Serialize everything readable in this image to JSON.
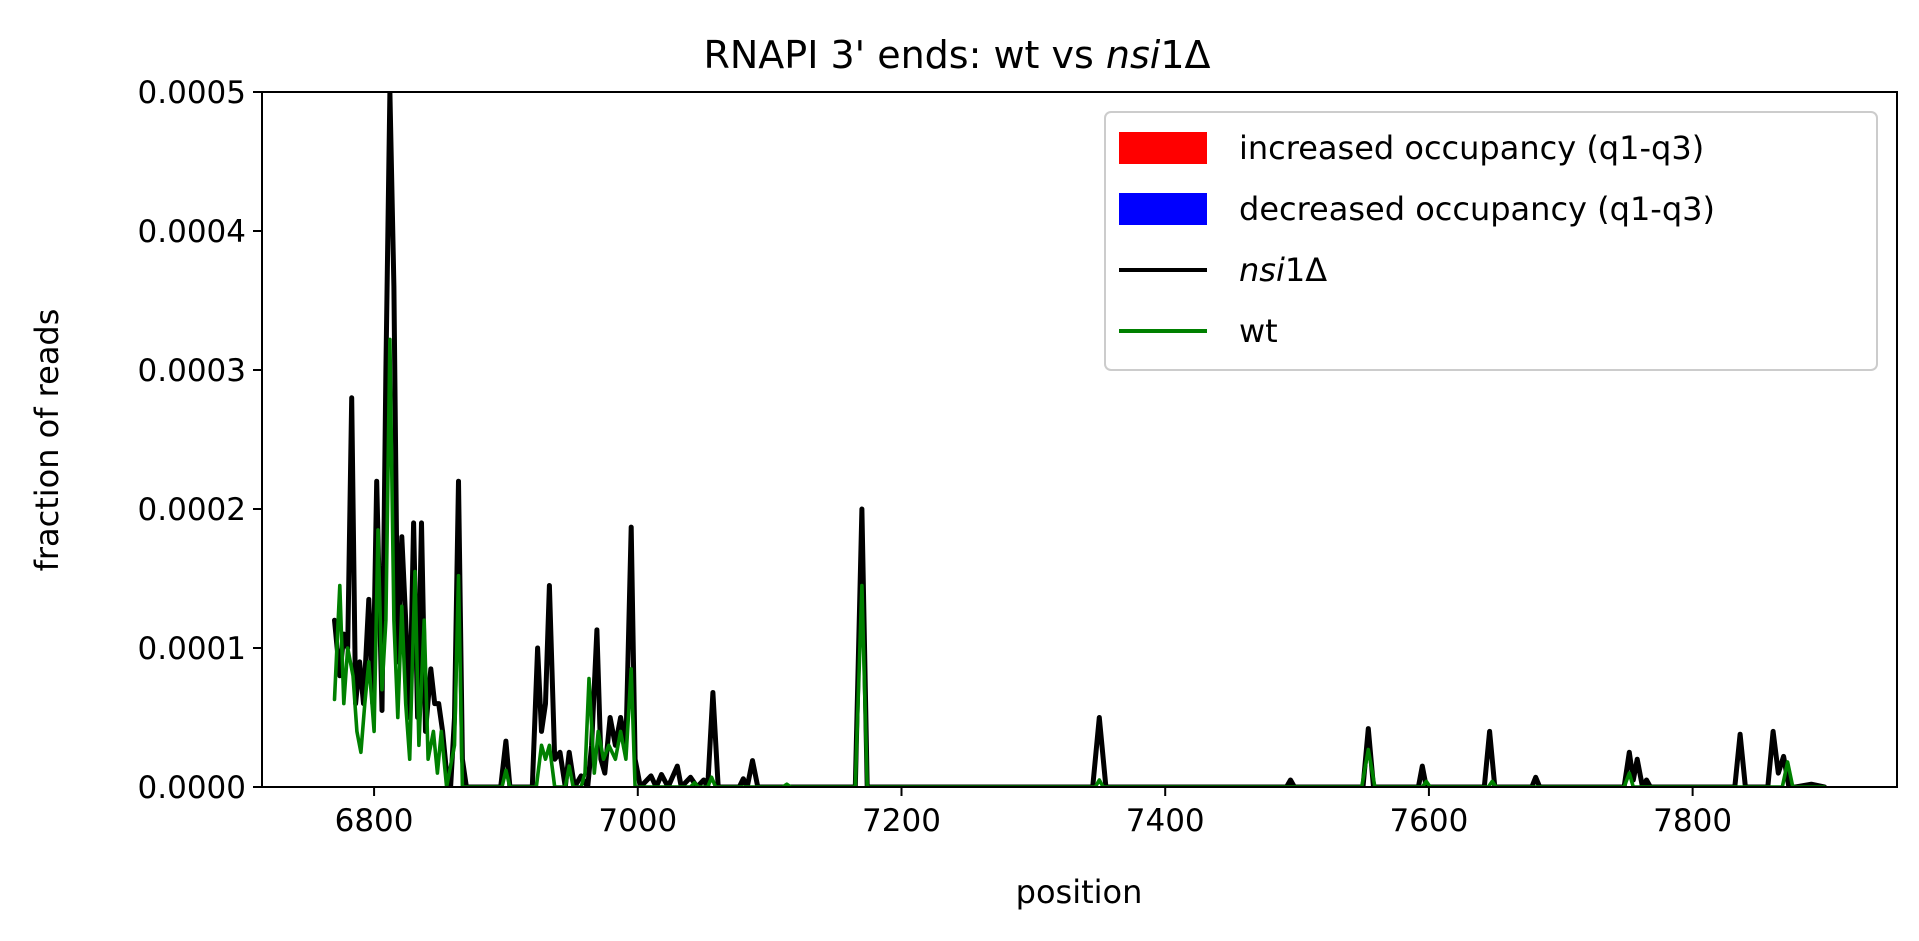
{
  "chart_data": {
    "type": "line",
    "title": {
      "prefix": "RNAPI 3' ends: wt vs ",
      "italic": "nsi",
      "suffix": "1Δ"
    },
    "xlabel": "position",
    "ylabel": "fraction of reads",
    "xlim": [
      6715,
      7955
    ],
    "ylim": [
      0,
      0.0005
    ],
    "xticks": [
      6800,
      7000,
      7200,
      7400,
      7600,
      7800
    ],
    "xtick_labels": [
      "6800",
      "7000",
      "7200",
      "7400",
      "7600",
      "7800"
    ],
    "yticks": [
      0,
      0.0001,
      0.0002,
      0.0003,
      0.0004,
      0.0005
    ],
    "ytick_labels": [
      "0.0000",
      "0.0001",
      "0.0002",
      "0.0003",
      "0.0004",
      "0.0005"
    ],
    "grid": false,
    "legend_position": "top-right",
    "legend": [
      {
        "kind": "patch",
        "color": "#ff0000",
        "text": "increased occupancy (q1-q3)"
      },
      {
        "kind": "patch",
        "color": "#0000ff",
        "text": "decreased occupancy (q1-q3)"
      },
      {
        "kind": "line",
        "color": "#000000",
        "italic": "nsi",
        "suffix": "1Δ"
      },
      {
        "kind": "line",
        "color": "#008000",
        "text": "wt"
      }
    ],
    "series": [
      {
        "color": "#000000",
        "points": [
          [
            6770,
            0.00012
          ],
          [
            6774,
            8e-05
          ],
          [
            6777,
            0.00011
          ],
          [
            6780,
            0.0001
          ],
          [
            6783,
            0.00028
          ],
          [
            6786,
            6e-05
          ],
          [
            6789,
            9e-05
          ],
          [
            6792,
            6e-05
          ],
          [
            6796,
            0.000135
          ],
          [
            6799,
            6e-05
          ],
          [
            6802,
            0.00022
          ],
          [
            6806,
            5.5e-05
          ],
          [
            6809,
            0.0003
          ],
          [
            6812,
            0.0005
          ],
          [
            6815,
            0.00036
          ],
          [
            6818,
            9e-05
          ],
          [
            6821,
            0.00018
          ],
          [
            6824,
            0.00012
          ],
          [
            6827,
            5e-05
          ],
          [
            6830,
            0.00019
          ],
          [
            6833,
            5e-05
          ],
          [
            6836,
            0.00019
          ],
          [
            6839,
            4e-05
          ],
          [
            6843,
            8.5e-05
          ],
          [
            6846,
            6e-05
          ],
          [
            6849,
            6e-05
          ],
          [
            6852,
            4e-05
          ],
          [
            6855,
            1e-05
          ],
          [
            6858,
            0.0
          ],
          [
            6861,
            5e-05
          ],
          [
            6864,
            0.00022
          ],
          [
            6867,
            2e-05
          ],
          [
            6870,
            0.0
          ],
          [
            6896,
            0.0
          ],
          [
            6900,
            3.3e-05
          ],
          [
            6903,
            0.0
          ],
          [
            6920,
            0.0
          ],
          [
            6924,
            0.0001
          ],
          [
            6927,
            4e-05
          ],
          [
            6930,
            6e-05
          ],
          [
            6933,
            0.000145
          ],
          [
            6937,
            2e-05
          ],
          [
            6941,
            2.5e-05
          ],
          [
            6945,
            0.0
          ],
          [
            6948,
            2.5e-05
          ],
          [
            6952,
            0.0
          ],
          [
            6957,
            8e-06
          ],
          [
            6962,
            0.0
          ],
          [
            6965,
            3e-05
          ],
          [
            6969,
            0.000113
          ],
          [
            6972,
            2e-05
          ],
          [
            6975,
            1e-05
          ],
          [
            6979,
            5e-05
          ],
          [
            6983,
            3e-05
          ],
          [
            6987,
            5e-05
          ],
          [
            6991,
            3e-05
          ],
          [
            6995,
            0.000187
          ],
          [
            6998,
            2e-05
          ],
          [
            7002,
            0.0
          ],
          [
            7010,
            8e-06
          ],
          [
            7014,
            0.0
          ],
          [
            7018,
            9e-06
          ],
          [
            7023,
            0.0
          ],
          [
            7030,
            1.5e-05
          ],
          [
            7033,
            0.0
          ],
          [
            7040,
            7e-06
          ],
          [
            7045,
            0.0
          ],
          [
            7050,
            5e-06
          ],
          [
            7053,
            0.0
          ],
          [
            7057,
            6.8e-05
          ],
          [
            7061,
            0.0
          ],
          [
            7077,
            0.0
          ],
          [
            7080,
            6e-06
          ],
          [
            7083,
            0.0
          ],
          [
            7087,
            1.9e-05
          ],
          [
            7091,
            0.0
          ],
          [
            7165,
            0.0
          ],
          [
            7170,
            0.0002
          ],
          [
            7174,
            0.0
          ],
          [
            7345,
            0.0
          ],
          [
            7350,
            5e-05
          ],
          [
            7355,
            0.0
          ],
          [
            7492,
            0.0
          ],
          [
            7495,
            5e-06
          ],
          [
            7498,
            0.0
          ],
          [
            7550,
            0.0
          ],
          [
            7554,
            4.2e-05
          ],
          [
            7558,
            0.0
          ],
          [
            7592,
            0.0
          ],
          [
            7595,
            1.5e-05
          ],
          [
            7598,
            0.0
          ],
          [
            7642,
            0.0
          ],
          [
            7646,
            4e-05
          ],
          [
            7650,
            0.0
          ],
          [
            7678,
            0.0
          ],
          [
            7681,
            7e-06
          ],
          [
            7684,
            0.0
          ],
          [
            7748,
            0.0
          ],
          [
            7752,
            2.5e-05
          ],
          [
            7755,
            5e-06
          ],
          [
            7758,
            2e-05
          ],
          [
            7762,
            0.0
          ],
          [
            7765,
            5e-06
          ],
          [
            7768,
            0.0
          ],
          [
            7832,
            0.0
          ],
          [
            7836,
            3.8e-05
          ],
          [
            7840,
            0.0
          ],
          [
            7857,
            0.0
          ],
          [
            7861,
            4e-05
          ],
          [
            7865,
            1e-05
          ],
          [
            7869,
            2.2e-05
          ],
          [
            7873,
            0.0
          ],
          [
            7878,
            0.0
          ],
          [
            7890,
            2e-06
          ],
          [
            7900,
            0.0
          ]
        ]
      },
      {
        "color": "#008000",
        "points": [
          [
            6770,
            6.3e-05
          ],
          [
            6774,
            0.000145
          ],
          [
            6777,
            6e-05
          ],
          [
            6780,
            0.0001
          ],
          [
            6784,
            8e-05
          ],
          [
            6787,
            4e-05
          ],
          [
            6790,
            2.5e-05
          ],
          [
            6793,
            6e-05
          ],
          [
            6796,
            9e-05
          ],
          [
            6800,
            4e-05
          ],
          [
            6803,
            0.000185
          ],
          [
            6806,
            7e-05
          ],
          [
            6809,
            0.00012
          ],
          [
            6812,
            0.000322
          ],
          [
            6815,
            0.00012
          ],
          [
            6818,
            5e-05
          ],
          [
            6821,
            0.00013
          ],
          [
            6824,
            6e-05
          ],
          [
            6827,
            2e-05
          ],
          [
            6831,
            0.000155
          ],
          [
            6834,
            3e-05
          ],
          [
            6838,
            0.00012
          ],
          [
            6841,
            2e-05
          ],
          [
            6845,
            4e-05
          ],
          [
            6848,
            1e-05
          ],
          [
            6851,
            4e-05
          ],
          [
            6855,
            0.0
          ],
          [
            6861,
            3e-05
          ],
          [
            6864,
            0.000152
          ],
          [
            6867,
            0.0
          ],
          [
            6897,
            0.0
          ],
          [
            6900,
            1.2e-05
          ],
          [
            6903,
            0.0
          ],
          [
            6923,
            0.0
          ],
          [
            6927,
            3e-05
          ],
          [
            6930,
            2e-05
          ],
          [
            6933,
            3e-05
          ],
          [
            6937,
            0.0
          ],
          [
            6945,
            0.0
          ],
          [
            6948,
            1.5e-05
          ],
          [
            6951,
            0.0
          ],
          [
            6957,
            0.0
          ],
          [
            6960,
            1e-05
          ],
          [
            6963,
            7.8e-05
          ],
          [
            6967,
            1e-05
          ],
          [
            6970,
            4e-05
          ],
          [
            6974,
            2e-05
          ],
          [
            6978,
            3e-05
          ],
          [
            6983,
            2e-05
          ],
          [
            6987,
            4e-05
          ],
          [
            6991,
            2e-05
          ],
          [
            6995,
            8.5e-05
          ],
          [
            6998,
            0.0
          ],
          [
            7040,
            0.0
          ],
          [
            7043,
            3e-06
          ],
          [
            7046,
            0.0
          ],
          [
            7053,
            0.0
          ],
          [
            7056,
            7e-06
          ],
          [
            7059,
            0.0
          ],
          [
            7110,
            0.0
          ],
          [
            7113,
            2e-06
          ],
          [
            7116,
            0.0
          ],
          [
            7165,
            0.0
          ],
          [
            7170,
            0.000145
          ],
          [
            7174,
            0.0
          ],
          [
            7347,
            0.0
          ],
          [
            7350,
            5e-06
          ],
          [
            7353,
            0.0
          ],
          [
            7549,
            0.0
          ],
          [
            7554,
            2.7e-05
          ],
          [
            7559,
            0.0
          ],
          [
            7595,
            0.0
          ],
          [
            7598,
            4e-06
          ],
          [
            7601,
            0.0
          ],
          [
            7645,
            0.0
          ],
          [
            7648,
            4e-06
          ],
          [
            7651,
            0.0
          ],
          [
            7748,
            0.0
          ],
          [
            7752,
            1e-05
          ],
          [
            7755,
            0.0
          ],
          [
            7868,
            0.0
          ],
          [
            7872,
            1.8e-05
          ],
          [
            7876,
            0.0
          ],
          [
            7900,
            0.0
          ]
        ]
      }
    ]
  }
}
